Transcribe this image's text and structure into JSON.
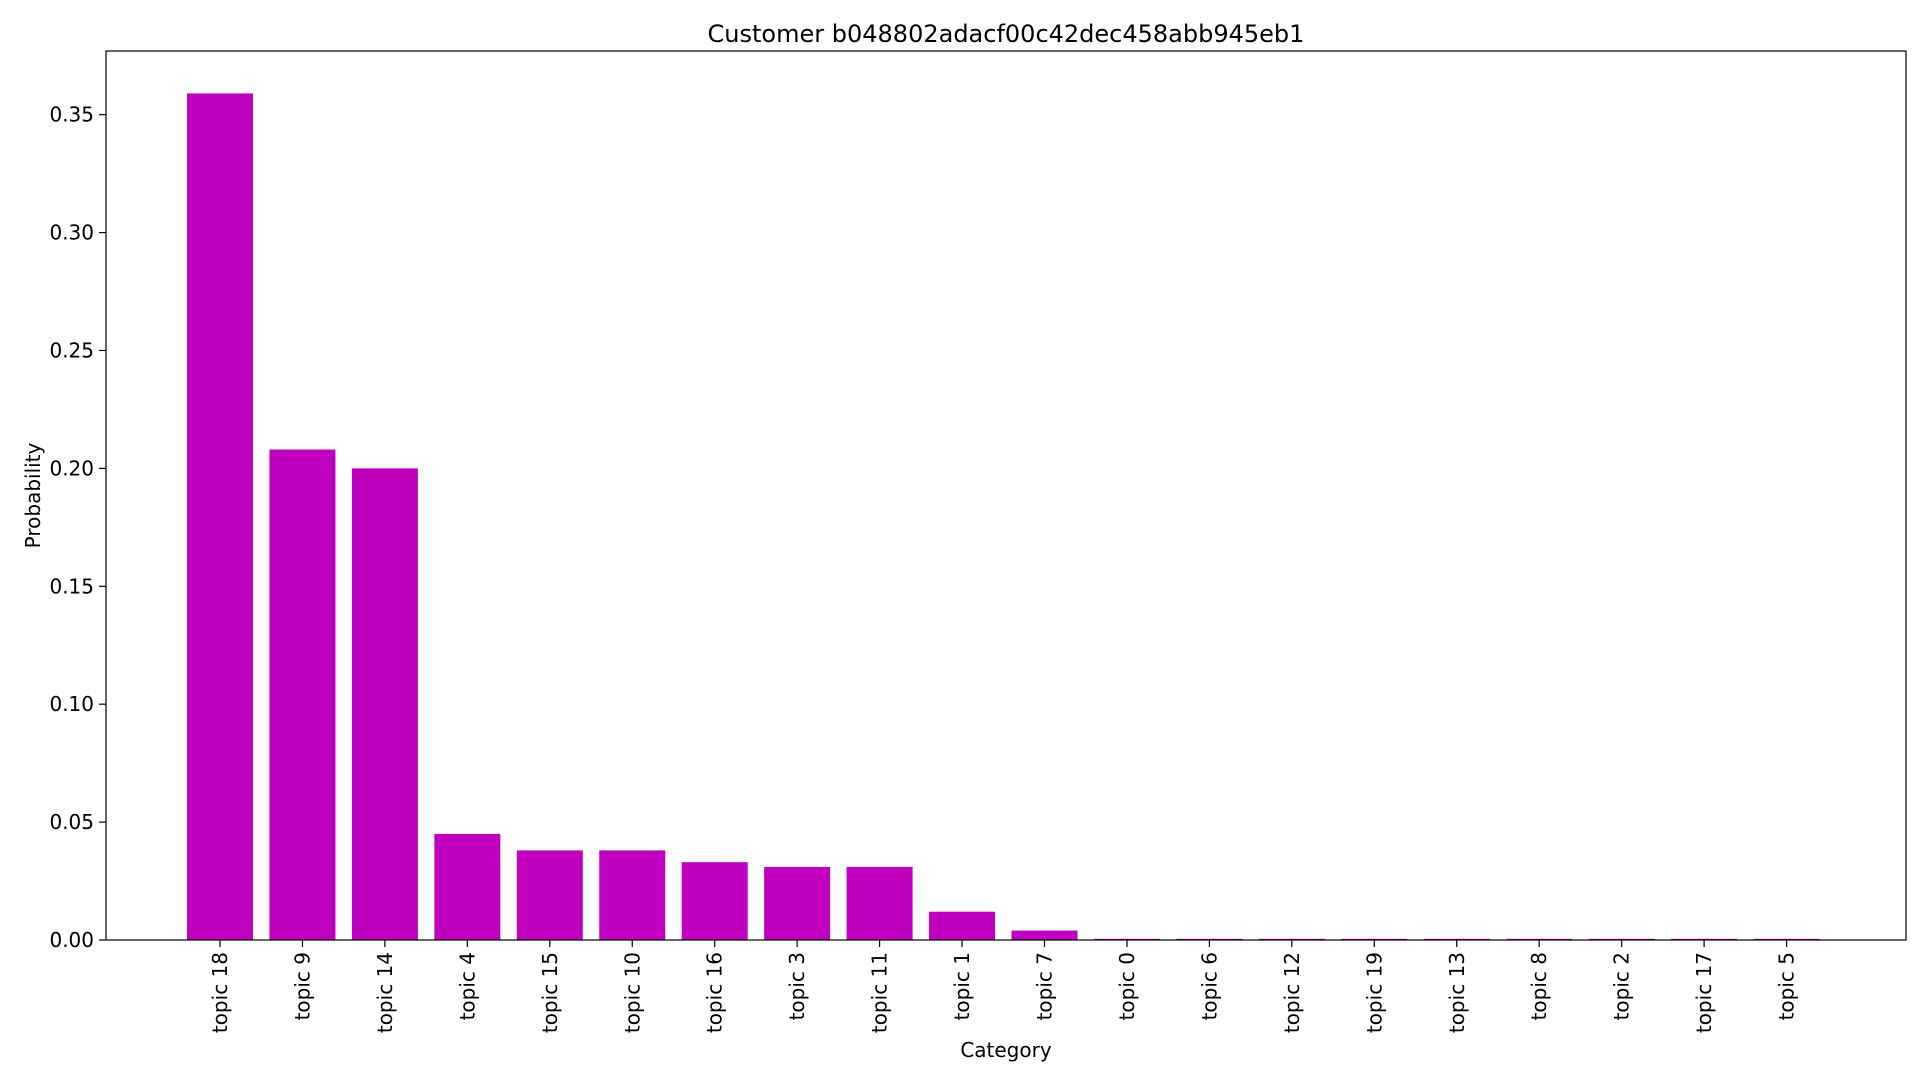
{
  "chart_data": {
    "type": "bar",
    "title": "Customer b048802adacf00c42dec458abb945eb1",
    "xlabel": "Category",
    "ylabel": "Probability",
    "categories": [
      "topic 18",
      "topic 9",
      "topic 14",
      "topic 4",
      "topic 15",
      "topic 10",
      "topic 16",
      "topic 3",
      "topic 11",
      "topic 1",
      "topic 7",
      "topic 0",
      "topic 6",
      "topic 12",
      "topic 19",
      "topic 13",
      "topic 8",
      "topic 2",
      "topic 17",
      "topic 5"
    ],
    "values": [
      0.359,
      0.208,
      0.2,
      0.045,
      0.038,
      0.038,
      0.033,
      0.031,
      0.031,
      0.012,
      0.004,
      0.0005,
      0.0005,
      0.0005,
      0.0005,
      0.0005,
      0.0005,
      0.0005,
      0.0005,
      0.0005
    ],
    "ylim": [
      0,
      0.377
    ],
    "yticks": [
      0.0,
      0.05,
      0.1,
      0.15,
      0.2,
      0.25,
      0.3,
      0.35
    ],
    "ytick_labels": [
      "0.00",
      "0.05",
      "0.10",
      "0.15",
      "0.20",
      "0.25",
      "0.30",
      "0.35"
    ],
    "bar_color": "#bf00bf",
    "grid": false,
    "legend": "none"
  }
}
